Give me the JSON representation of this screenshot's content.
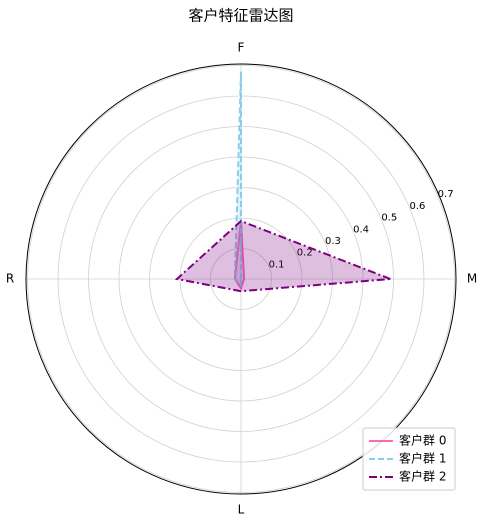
{
  "chart_data": {
    "type": "radar",
    "title": "客户特征雷达图",
    "categories": [
      "M",
      "F",
      "R",
      "L"
    ],
    "series": [
      {
        "name": "客户群 0",
        "color": "#ff69b4",
        "linestyle": "solid",
        "values": [
          0.01,
          0.19,
          0.02,
          0.03
        ]
      },
      {
        "name": "客户群 1",
        "color": "#87ceeb",
        "linestyle": "dashed",
        "values": [
          0.0,
          0.68,
          0.02,
          0.02
        ]
      },
      {
        "name": "客户群 2",
        "color": "#800080",
        "linestyle": "dashdot",
        "values": [
          0.49,
          0.19,
          0.21,
          0.04
        ]
      }
    ],
    "ylim": [
      0,
      0.705
    ],
    "yticks": [
      0.1,
      0.2,
      0.3,
      0.4,
      0.5,
      0.6,
      0.7
    ],
    "grid": true,
    "legend": "lower right"
  }
}
